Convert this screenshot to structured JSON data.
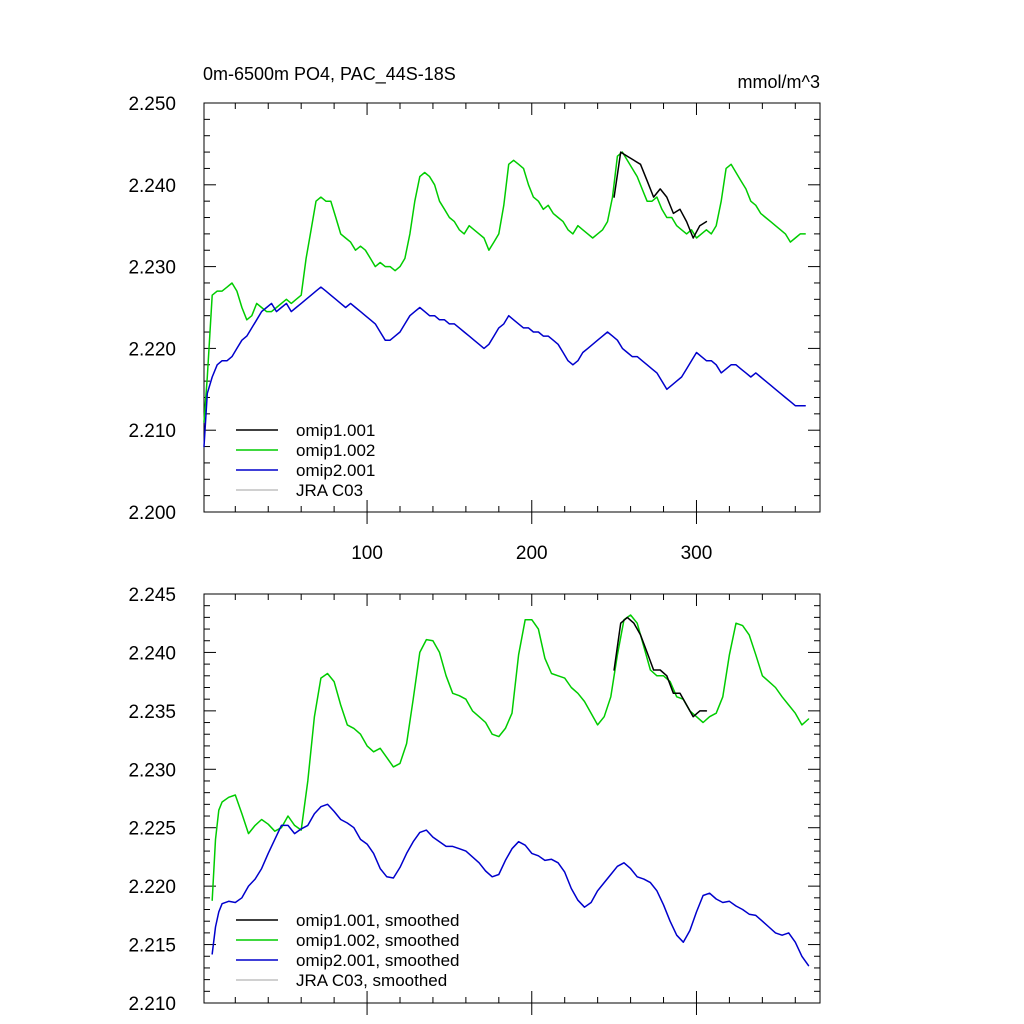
{
  "chart_data": [
    {
      "type": "line",
      "title": "0m-6500m PO4, PAC_44S-18S",
      "units": "mmol/m^3",
      "xlabel": "",
      "ylabel": "",
      "xlim": [
        1,
        375
      ],
      "ylim": [
        2.2,
        2.25
      ],
      "xticks": [
        100,
        200,
        300
      ],
      "xtick_labels": [
        "100",
        "200",
        "300"
      ],
      "yticks": [
        2.2,
        2.21,
        2.22,
        2.23,
        2.24,
        2.25
      ],
      "ytick_labels": [
        "2.200",
        "2.210",
        "2.220",
        "2.230",
        "2.240",
        "2.250"
      ],
      "legend_position": "bottom-left",
      "series": [
        {
          "name": "omip1.001",
          "color": "#000000",
          "x": [
            250,
            254,
            258,
            262,
            266,
            270,
            274,
            278,
            282,
            286,
            290,
            294,
            298,
            302,
            306
          ],
          "values": [
            2.2385,
            2.244,
            2.2435,
            2.243,
            2.2425,
            2.2405,
            2.2385,
            2.2395,
            2.2385,
            2.2365,
            2.237,
            2.2355,
            2.2335,
            2.235,
            2.2355
          ]
        },
        {
          "name": "omip1.002",
          "color": "#00cc00",
          "x": [
            1,
            3,
            6,
            9,
            12,
            15,
            18,
            21,
            24,
            27,
            30,
            33,
            36,
            39,
            42,
            45,
            48,
            51,
            54,
            57,
            60,
            63,
            66,
            69,
            72,
            75,
            78,
            81,
            84,
            87,
            90,
            93,
            96,
            99,
            102,
            105,
            108,
            111,
            114,
            117,
            120,
            123,
            126,
            129,
            132,
            135,
            138,
            141,
            144,
            147,
            150,
            153,
            156,
            159,
            162,
            165,
            168,
            171,
            174,
            177,
            180,
            183,
            186,
            189,
            192,
            195,
            198,
            201,
            204,
            207,
            210,
            213,
            216,
            219,
            222,
            225,
            228,
            231,
            234,
            237,
            240,
            243,
            246,
            249,
            252,
            255,
            258,
            261,
            264,
            267,
            270,
            273,
            276,
            279,
            282,
            285,
            288,
            291,
            294,
            297,
            300,
            303,
            306,
            309,
            312,
            315,
            318,
            321,
            324,
            327,
            330,
            333,
            336,
            339,
            342,
            345,
            348,
            351,
            354,
            357,
            360,
            363,
            366
          ],
          "values": [
            2.211,
            2.2165,
            2.2265,
            2.227,
            2.227,
            2.2275,
            2.228,
            2.227,
            2.225,
            2.2235,
            2.224,
            2.2255,
            2.225,
            2.2245,
            2.2245,
            2.225,
            2.2255,
            2.226,
            2.2255,
            2.226,
            2.2265,
            2.231,
            2.2345,
            2.238,
            2.2385,
            2.238,
            2.238,
            2.236,
            2.234,
            2.2335,
            2.233,
            2.232,
            2.2325,
            2.232,
            2.231,
            2.23,
            2.2305,
            2.23,
            2.23,
            2.2295,
            2.23,
            2.231,
            2.234,
            2.238,
            2.241,
            2.2415,
            2.241,
            2.24,
            2.238,
            2.237,
            2.236,
            2.2355,
            2.2345,
            2.234,
            2.235,
            2.2345,
            2.234,
            2.2335,
            2.232,
            2.233,
            2.234,
            2.2375,
            2.2425,
            2.243,
            2.2425,
            2.242,
            2.24,
            2.2385,
            2.238,
            2.237,
            2.2375,
            2.2365,
            2.236,
            2.2355,
            2.2345,
            2.234,
            2.235,
            2.2345,
            2.234,
            2.2335,
            2.234,
            2.2345,
            2.2355,
            2.2385,
            2.2435,
            2.244,
            2.243,
            2.242,
            2.241,
            2.2395,
            2.238,
            2.238,
            2.2385,
            2.237,
            2.236,
            2.236,
            2.235,
            2.2345,
            2.234,
            2.2345,
            2.2335,
            2.234,
            2.2345,
            2.234,
            2.235,
            2.238,
            2.242,
            2.2425,
            2.2415,
            2.2405,
            2.2395,
            2.238,
            2.2375,
            2.2365,
            2.236,
            2.2355,
            2.235,
            2.2345,
            2.234,
            2.233,
            2.2335,
            2.234,
            2.234
          ]
        },
        {
          "name": "omip2.001",
          "color": "#0000cc",
          "x": [
            1,
            3,
            6,
            9,
            12,
            15,
            18,
            21,
            24,
            27,
            30,
            33,
            36,
            39,
            42,
            45,
            48,
            51,
            54,
            57,
            60,
            63,
            66,
            69,
            72,
            75,
            78,
            81,
            84,
            87,
            90,
            93,
            96,
            99,
            102,
            105,
            108,
            111,
            114,
            117,
            120,
            123,
            126,
            129,
            132,
            135,
            138,
            141,
            144,
            147,
            150,
            153,
            156,
            159,
            162,
            165,
            168,
            171,
            174,
            177,
            180,
            183,
            186,
            189,
            192,
            195,
            198,
            201,
            204,
            207,
            210,
            213,
            216,
            219,
            222,
            225,
            228,
            231,
            234,
            237,
            240,
            243,
            246,
            249,
            252,
            255,
            258,
            261,
            264,
            267,
            270,
            273,
            276,
            279,
            282,
            285,
            288,
            291,
            294,
            297,
            300,
            303,
            306,
            309,
            312,
            315,
            318,
            321,
            324,
            327,
            330,
            333,
            336,
            339,
            342,
            345,
            348,
            351,
            354,
            357,
            360,
            363,
            366
          ],
          "values": [
            2.208,
            2.2145,
            2.2165,
            2.218,
            2.2185,
            2.2185,
            2.219,
            2.22,
            2.221,
            2.2215,
            2.2225,
            2.2235,
            2.2245,
            2.225,
            2.2255,
            2.2245,
            2.225,
            2.2255,
            2.2245,
            2.225,
            2.2255,
            2.226,
            2.2265,
            2.227,
            2.2275,
            2.227,
            2.2265,
            2.226,
            2.2255,
            2.225,
            2.2255,
            2.225,
            2.2245,
            2.224,
            2.2235,
            2.223,
            2.222,
            2.221,
            2.221,
            2.2215,
            2.222,
            2.223,
            2.224,
            2.2245,
            2.225,
            2.2245,
            2.224,
            2.224,
            2.2235,
            2.2235,
            2.223,
            2.223,
            2.2225,
            2.222,
            2.2215,
            2.221,
            2.2205,
            2.22,
            2.2205,
            2.2215,
            2.2225,
            2.223,
            2.224,
            2.2235,
            2.223,
            2.2225,
            2.2225,
            2.222,
            2.222,
            2.2215,
            2.2215,
            2.221,
            2.2205,
            2.2195,
            2.2185,
            2.218,
            2.2185,
            2.2195,
            2.22,
            2.2205,
            2.221,
            2.2215,
            2.222,
            2.2215,
            2.221,
            2.22,
            2.2195,
            2.219,
            2.219,
            2.2185,
            2.218,
            2.2175,
            2.217,
            2.216,
            2.215,
            2.2155,
            2.216,
            2.2165,
            2.2175,
            2.2185,
            2.2195,
            2.219,
            2.2185,
            2.2185,
            2.218,
            2.217,
            2.2175,
            2.218,
            2.218,
            2.2175,
            2.217,
            2.2165,
            2.217,
            2.2165,
            2.216,
            2.2155,
            2.215,
            2.2145,
            2.214,
            2.2135,
            2.213,
            2.213,
            2.213
          ]
        },
        {
          "name": "JRA C03",
          "color": "#c0c0c0",
          "x": [],
          "values": []
        }
      ]
    },
    {
      "type": "line",
      "title": "",
      "xlabel": "",
      "ylabel": "",
      "xlim": [
        1,
        375
      ],
      "ylim": [
        2.21,
        2.245
      ],
      "xticks": [
        100,
        200,
        300
      ],
      "xtick_labels": [
        "",
        "",
        ""
      ],
      "yticks": [
        2.21,
        2.215,
        2.22,
        2.225,
        2.23,
        2.235,
        2.24,
        2.245
      ],
      "ytick_labels": [
        "2.210",
        "2.215",
        "2.220",
        "2.225",
        "2.230",
        "2.235",
        "2.240",
        "2.245"
      ],
      "legend_position": "bottom-left",
      "series": [
        {
          "name": "omip1.001, smoothed",
          "color": "#000000",
          "x": [
            250,
            254,
            258,
            262,
            266,
            270,
            274,
            278,
            282,
            286,
            290,
            294,
            298,
            302,
            306
          ],
          "values": [
            2.2385,
            2.2425,
            2.243,
            2.2425,
            2.2415,
            2.24,
            2.2385,
            2.2385,
            2.238,
            2.2365,
            2.2365,
            2.2355,
            2.2345,
            2.235,
            2.235
          ]
        },
        {
          "name": "omip1.002, smoothed",
          "color": "#00cc00",
          "x": [
            6,
            8,
            10,
            12,
            16,
            20,
            24,
            28,
            32,
            36,
            40,
            44,
            48,
            52,
            56,
            60,
            64,
            68,
            72,
            76,
            80,
            84,
            88,
            92,
            96,
            100,
            104,
            108,
            112,
            116,
            120,
            124,
            128,
            132,
            136,
            140,
            144,
            148,
            152,
            156,
            160,
            164,
            168,
            172,
            176,
            180,
            184,
            188,
            192,
            196,
            200,
            204,
            208,
            212,
            216,
            220,
            224,
            228,
            232,
            236,
            240,
            244,
            248,
            252,
            256,
            260,
            264,
            268,
            272,
            276,
            280,
            284,
            288,
            292,
            296,
            300,
            304,
            308,
            312,
            316,
            320,
            324,
            328,
            332,
            336,
            340,
            344,
            348,
            352,
            356,
            360,
            364,
            368
          ],
          "values": [
            2.2188,
            2.224,
            2.2265,
            2.2272,
            2.2276,
            2.2278,
            2.2262,
            2.2245,
            2.2252,
            2.2257,
            2.2253,
            2.2247,
            2.225,
            2.226,
            2.2252,
            2.2248,
            2.229,
            2.2345,
            2.2378,
            2.2382,
            2.2375,
            2.2355,
            2.2338,
            2.2335,
            2.233,
            2.232,
            2.2315,
            2.2318,
            2.231,
            2.2302,
            2.2305,
            2.2322,
            2.236,
            2.24,
            2.2411,
            2.241,
            2.24,
            2.238,
            2.2365,
            2.2363,
            2.236,
            2.235,
            2.2345,
            2.234,
            2.233,
            2.2328,
            2.2335,
            2.2348,
            2.2398,
            2.2428,
            2.2428,
            2.242,
            2.2395,
            2.2382,
            2.238,
            2.2378,
            2.237,
            2.2365,
            2.2358,
            2.2348,
            2.2338,
            2.2345,
            2.2362,
            2.2398,
            2.2428,
            2.2432,
            2.2425,
            2.2405,
            2.2385,
            2.238,
            2.238,
            2.2375,
            2.2362,
            2.236,
            2.235,
            2.2345,
            2.234,
            2.2345,
            2.2348,
            2.2362,
            2.2398,
            2.2425,
            2.2423,
            2.2415,
            2.2398,
            2.238,
            2.2375,
            2.237,
            2.2362,
            2.2355,
            2.2348,
            2.2338,
            2.2343
          ]
        },
        {
          "name": "omip2.001, smoothed",
          "color": "#0000cc",
          "x": [
            6,
            8,
            10,
            12,
            16,
            20,
            24,
            28,
            32,
            36,
            40,
            44,
            48,
            52,
            56,
            60,
            64,
            68,
            72,
            76,
            80,
            84,
            88,
            92,
            96,
            100,
            104,
            108,
            112,
            116,
            120,
            124,
            128,
            132,
            136,
            140,
            144,
            148,
            152,
            156,
            160,
            164,
            168,
            172,
            176,
            180,
            184,
            188,
            192,
            196,
            200,
            204,
            208,
            212,
            216,
            220,
            224,
            228,
            232,
            236,
            240,
            244,
            248,
            252,
            256,
            260,
            264,
            268,
            272,
            276,
            280,
            284,
            288,
            292,
            296,
            300,
            304,
            308,
            312,
            316,
            320,
            324,
            328,
            332,
            336,
            340,
            344,
            348,
            352,
            356,
            360,
            364,
            368
          ],
          "values": [
            2.2142,
            2.2165,
            2.2178,
            2.2185,
            2.2187,
            2.2186,
            2.219,
            2.22,
            2.2206,
            2.2215,
            2.2228,
            2.224,
            2.2252,
            2.2252,
            2.2245,
            2.2249,
            2.2252,
            2.2262,
            2.2268,
            2.227,
            2.2264,
            2.2257,
            2.2254,
            2.225,
            2.224,
            2.2236,
            2.2228,
            2.2215,
            2.2208,
            2.2207,
            2.2216,
            2.2228,
            2.2238,
            2.2246,
            2.2248,
            2.2242,
            2.2238,
            2.2234,
            2.2234,
            2.2232,
            2.223,
            2.2225,
            2.222,
            2.2213,
            2.2208,
            2.221,
            2.2222,
            2.2232,
            2.2238,
            2.2235,
            2.2228,
            2.2226,
            2.2222,
            2.2223,
            2.222,
            2.2212,
            2.2198,
            2.2188,
            2.2182,
            2.2186,
            2.2196,
            2.2203,
            2.221,
            2.2217,
            2.222,
            2.2215,
            2.2208,
            2.2206,
            2.2203,
            2.2196,
            2.2184,
            2.217,
            2.2158,
            2.2152,
            2.2162,
            2.2178,
            2.2192,
            2.2194,
            2.2189,
            2.2186,
            2.2187,
            2.2183,
            2.218,
            2.2176,
            2.2175,
            2.217,
            2.2165,
            2.216,
            2.2158,
            2.216,
            2.2152,
            2.214,
            2.2132
          ]
        },
        {
          "name": "JRA C03, smoothed",
          "color": "#c0c0c0",
          "x": [],
          "values": []
        }
      ]
    }
  ]
}
